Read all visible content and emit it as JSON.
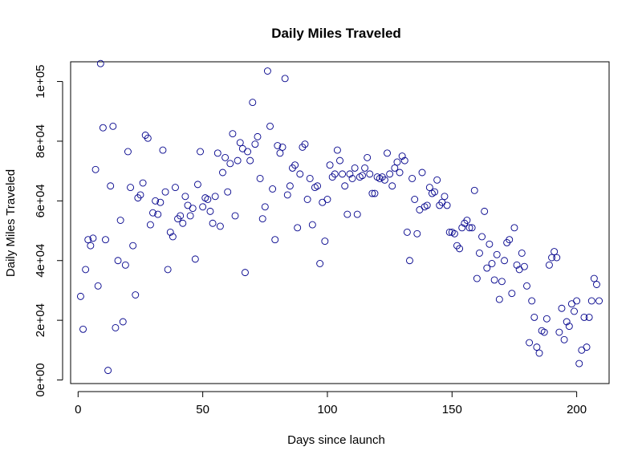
{
  "chart_data": {
    "type": "scatter",
    "title": "Daily Miles Traveled",
    "xlabel": "Days since launch",
    "ylabel": "Daily Miles Traveled",
    "xlim": [
      -3,
      213
    ],
    "ylim": [
      -1200,
      106600
    ],
    "x_ticks": [
      0,
      50,
      100,
      150,
      200
    ],
    "y_ticks": [
      0,
      20000,
      40000,
      60000,
      80000,
      100000
    ],
    "y_tick_labels": [
      "0e+00",
      "2e+04",
      "4e+04",
      "6e+04",
      "8e+04",
      "1e+05"
    ],
    "grid": false,
    "legend": "none",
    "marker_color": "#00008b",
    "points": [
      [
        1,
        28000
      ],
      [
        2,
        17000
      ],
      [
        3,
        37000
      ],
      [
        4,
        47000
      ],
      [
        5,
        45000
      ],
      [
        6,
        47500
      ],
      [
        7,
        70500
      ],
      [
        8,
        31500
      ],
      [
        9,
        106000
      ],
      [
        10,
        84500
      ],
      [
        11,
        47000
      ],
      [
        12,
        3200
      ],
      [
        13,
        65000
      ],
      [
        14,
        85000
      ],
      [
        15,
        17500
      ],
      [
        16,
        40000
      ],
      [
        17,
        53500
      ],
      [
        18,
        19500
      ],
      [
        19,
        38500
      ],
      [
        20,
        76500
      ],
      [
        21,
        64500
      ],
      [
        22,
        45000
      ],
      [
        23,
        28500
      ],
      [
        24,
        61000
      ],
      [
        25,
        62000
      ],
      [
        26,
        66000
      ],
      [
        27,
        82000
      ],
      [
        28,
        81000
      ],
      [
        29,
        52000
      ],
      [
        30,
        56000
      ],
      [
        31,
        60000
      ],
      [
        32,
        55500
      ],
      [
        33,
        59500
      ],
      [
        34,
        77000
      ],
      [
        35,
        63000
      ],
      [
        36,
        37000
      ],
      [
        37,
        49500
      ],
      [
        38,
        48000
      ],
      [
        39,
        64500
      ],
      [
        40,
        54000
      ],
      [
        41,
        55000
      ],
      [
        42,
        52500
      ],
      [
        43,
        61500
      ],
      [
        44,
        58500
      ],
      [
        45,
        55000
      ],
      [
        46,
        57500
      ],
      [
        47,
        40500
      ],
      [
        48,
        65500
      ],
      [
        49,
        76500
      ],
      [
        50,
        58000
      ],
      [
        51,
        61000
      ],
      [
        52,
        60500
      ],
      [
        53,
        56500
      ],
      [
        54,
        52500
      ],
      [
        55,
        61500
      ],
      [
        56,
        76000
      ],
      [
        57,
        51500
      ],
      [
        58,
        69500
      ],
      [
        59,
        74500
      ],
      [
        60,
        63000
      ],
      [
        61,
        72500
      ],
      [
        62,
        82500
      ],
      [
        63,
        55000
      ],
      [
        64,
        73500
      ],
      [
        65,
        79500
      ],
      [
        66,
        77500
      ],
      [
        67,
        36000
      ],
      [
        68,
        76500
      ],
      [
        69,
        73500
      ],
      [
        70,
        93000
      ],
      [
        71,
        79000
      ],
      [
        72,
        81500
      ],
      [
        73,
        67500
      ],
      [
        74,
        54000
      ],
      [
        75,
        58000
      ],
      [
        76,
        103500
      ],
      [
        77,
        85000
      ],
      [
        78,
        64000
      ],
      [
        79,
        47000
      ],
      [
        80,
        78500
      ],
      [
        81,
        76000
      ],
      [
        82,
        78000
      ],
      [
        83,
        101000
      ],
      [
        84,
        62000
      ],
      [
        85,
        65000
      ],
      [
        86,
        71000
      ],
      [
        87,
        72000
      ],
      [
        88,
        51000
      ],
      [
        89,
        69000
      ],
      [
        90,
        78000
      ],
      [
        91,
        79000
      ],
      [
        92,
        60500
      ],
      [
        93,
        67500
      ],
      [
        94,
        52000
      ],
      [
        95,
        64500
      ],
      [
        96,
        65000
      ],
      [
        97,
        39000
      ],
      [
        98,
        59500
      ],
      [
        99,
        46500
      ],
      [
        100,
        60500
      ],
      [
        101,
        72000
      ],
      [
        102,
        68000
      ],
      [
        103,
        69000
      ],
      [
        104,
        77000
      ],
      [
        105,
        73500
      ],
      [
        106,
        69000
      ],
      [
        107,
        65000
      ],
      [
        108,
        55500
      ],
      [
        109,
        69000
      ],
      [
        110,
        67500
      ],
      [
        111,
        71000
      ],
      [
        112,
        55500
      ],
      [
        113,
        68000
      ],
      [
        114,
        68500
      ],
      [
        115,
        71000
      ],
      [
        116,
        74500
      ],
      [
        117,
        69000
      ],
      [
        118,
        62500
      ],
      [
        119,
        62500
      ],
      [
        120,
        68000
      ],
      [
        121,
        67500
      ],
      [
        122,
        68000
      ],
      [
        123,
        67000
      ],
      [
        124,
        76000
      ],
      [
        125,
        69000
      ],
      [
        126,
        65000
      ],
      [
        127,
        71000
      ],
      [
        128,
        73000
      ],
      [
        129,
        69500
      ],
      [
        130,
        75000
      ],
      [
        131,
        73500
      ],
      [
        132,
        49500
      ],
      [
        133,
        40000
      ],
      [
        134,
        67500
      ],
      [
        135,
        60500
      ],
      [
        136,
        49000
      ],
      [
        137,
        57000
      ],
      [
        138,
        69500
      ],
      [
        139,
        58000
      ],
      [
        140,
        58500
      ],
      [
        141,
        64500
      ],
      [
        142,
        62500
      ],
      [
        143,
        63000
      ],
      [
        144,
        67000
      ],
      [
        145,
        58500
      ],
      [
        146,
        59500
      ],
      [
        147,
        61500
      ],
      [
        148,
        58500
      ],
      [
        149,
        49500
      ],
      [
        150,
        49500
      ],
      [
        151,
        49000
      ],
      [
        152,
        45000
      ],
      [
        153,
        44000
      ],
      [
        154,
        51000
      ],
      [
        155,
        52500
      ],
      [
        156,
        53500
      ],
      [
        157,
        51000
      ],
      [
        158,
        51000
      ],
      [
        159,
        63500
      ],
      [
        160,
        34000
      ],
      [
        161,
        42500
      ],
      [
        162,
        48000
      ],
      [
        163,
        56500
      ],
      [
        164,
        37500
      ],
      [
        165,
        45500
      ],
      [
        166,
        39000
      ],
      [
        167,
        33500
      ],
      [
        168,
        42000
      ],
      [
        169,
        27000
      ],
      [
        170,
        33000
      ],
      [
        171,
        40000
      ],
      [
        172,
        46000
      ],
      [
        173,
        47000
      ],
      [
        174,
        29000
      ],
      [
        175,
        51000
      ],
      [
        176,
        38500
      ],
      [
        177,
        37000
      ],
      [
        178,
        42500
      ],
      [
        179,
        38000
      ],
      [
        180,
        31500
      ],
      [
        181,
        12500
      ],
      [
        182,
        26500
      ],
      [
        183,
        21000
      ],
      [
        184,
        11000
      ],
      [
        185,
        9000
      ],
      [
        186,
        16500
      ],
      [
        187,
        16000
      ],
      [
        188,
        20500
      ],
      [
        189,
        38500
      ],
      [
        190,
        41000
      ],
      [
        191,
        43000
      ],
      [
        192,
        41000
      ],
      [
        193,
        16000
      ],
      [
        194,
        24000
      ],
      [
        195,
        13500
      ],
      [
        196,
        19500
      ],
      [
        197,
        18000
      ],
      [
        198,
        25500
      ],
      [
        199,
        23000
      ],
      [
        200,
        26500
      ],
      [
        201,
        5500
      ],
      [
        202,
        10000
      ],
      [
        203,
        21000
      ],
      [
        204,
        11000
      ],
      [
        205,
        21000
      ],
      [
        206,
        26500
      ],
      [
        207,
        34000
      ],
      [
        208,
        32000
      ],
      [
        209,
        26500
      ]
    ]
  }
}
